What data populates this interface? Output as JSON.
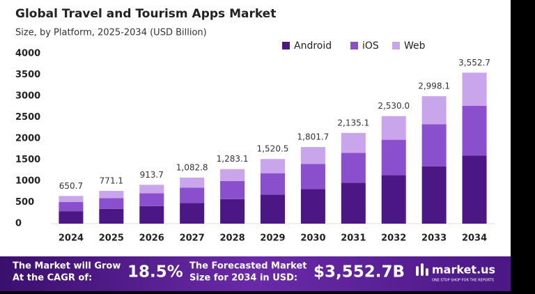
{
  "chart_data": {
    "type": "stacked_bar",
    "title": "Global Travel and Tourism Apps Market",
    "subtitle": "Size, by Platform, 2025-2034 (USD Billion)",
    "categories": [
      "2024",
      "2025",
      "2026",
      "2027",
      "2028",
      "2029",
      "2030",
      "2031",
      "2032",
      "2033",
      "2034"
    ],
    "series": [
      {
        "name": "Android",
        "color": "#4b1784",
        "values": [
          293.0,
          347.0,
          411.2,
          487.3,
          577.4,
          684.2,
          810.8,
          960.8,
          1138.5,
          1349.1,
          1598.7
        ]
      },
      {
        "name": "iOS",
        "color": "#8a4fcc",
        "values": [
          214.7,
          254.5,
          301.5,
          357.3,
          423.4,
          501.8,
          594.6,
          704.6,
          834.9,
          989.4,
          1172.4
        ]
      },
      {
        "name": "Web",
        "color": "#c9a5ec",
        "values": [
          143.0,
          169.6,
          201.0,
          238.2,
          282.3,
          334.5,
          396.3,
          469.7,
          556.6,
          659.6,
          781.6
        ]
      }
    ],
    "totals": [
      650.7,
      771.1,
      913.7,
      1082.8,
      1283.1,
      1520.5,
      1801.7,
      2135.1,
      2530.0,
      2998.1,
      3552.7
    ],
    "total_labels": [
      "650.7",
      "771.1",
      "913.7",
      "1,082.8",
      "1,283.1",
      "1,520.5",
      "1,801.7",
      "2,135.1",
      "2,530.0",
      "2,998.1",
      "3,552.7"
    ],
    "ylim": [
      0,
      4000
    ],
    "yticks": [
      0,
      500,
      1000,
      1500,
      2000,
      2500,
      3000,
      3500,
      4000
    ],
    "grid": false,
    "legend": "top-right"
  },
  "footer": {
    "cagr_text": [
      "The Market will Grow",
      "At the CAGR of:"
    ],
    "cagr": "18.5%",
    "forecast_text": [
      "The Forecasted Market",
      "Size for 2034 in USD:"
    ],
    "forecast": "$3,552.7B",
    "brand": "market.us",
    "tagline": "ONE STOP SHOP FOR THE REPORTS"
  }
}
